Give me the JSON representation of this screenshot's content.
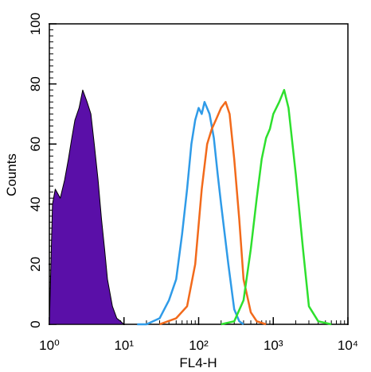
{
  "chart_data": {
    "type": "line",
    "xlabel": "FL4-H",
    "ylabel": "Counts",
    "xscale": "log",
    "xlim": [
      1,
      10000
    ],
    "xticks": [
      {
        "value": 1,
        "label": "10⁰"
      },
      {
        "value": 10,
        "label": "10¹"
      },
      {
        "value": 100,
        "label": "10²"
      },
      {
        "value": 1000,
        "label": "10³"
      },
      {
        "value": 10000,
        "label": "10⁴"
      }
    ],
    "ylim": [
      0,
      100
    ],
    "yticks": [
      0,
      20,
      40,
      60,
      80,
      100
    ],
    "series": [
      {
        "color": "#5a0fa8",
        "fill": true,
        "x": [
          1,
          1.1,
          1.2,
          1.4,
          1.6,
          1.8,
          2,
          2.2,
          2.5,
          2.8,
          3.2,
          3.6,
          4,
          4.5,
          5,
          5.5,
          6,
          7,
          8,
          9,
          10
        ],
        "values": [
          0,
          40,
          45,
          42,
          48,
          55,
          62,
          68,
          72,
          78,
          74,
          70,
          60,
          48,
          35,
          25,
          15,
          6,
          2,
          1,
          0
        ]
      },
      {
        "color": "#2f9be8",
        "fill": false,
        "x": [
          15,
          20,
          30,
          40,
          50,
          60,
          70,
          80,
          90,
          100,
          110,
          120,
          140,
          160,
          180,
          200,
          250,
          300,
          350,
          400
        ],
        "values": [
          0,
          0,
          2,
          8,
          15,
          30,
          45,
          60,
          68,
          72,
          70,
          74,
          70,
          62,
          50,
          40,
          20,
          5,
          1,
          0
        ]
      },
      {
        "color": "#f26a1b",
        "fill": false,
        "x": [
          30,
          50,
          70,
          90,
          110,
          130,
          150,
          170,
          200,
          230,
          260,
          300,
          350,
          400,
          500,
          600,
          800
        ],
        "values": [
          0,
          2,
          6,
          20,
          45,
          60,
          65,
          68,
          72,
          74,
          70,
          55,
          35,
          15,
          4,
          1,
          0
        ]
      },
      {
        "color": "#2ee02e",
        "fill": false,
        "x": [
          200,
          300,
          400,
          500,
          600,
          700,
          800,
          900,
          1000,
          1200,
          1400,
          1600,
          2000,
          2500,
          3000,
          4000,
          6000
        ],
        "values": [
          0,
          1,
          8,
          25,
          42,
          55,
          62,
          65,
          70,
          74,
          78,
          72,
          50,
          25,
          6,
          1,
          0
        ]
      }
    ]
  }
}
